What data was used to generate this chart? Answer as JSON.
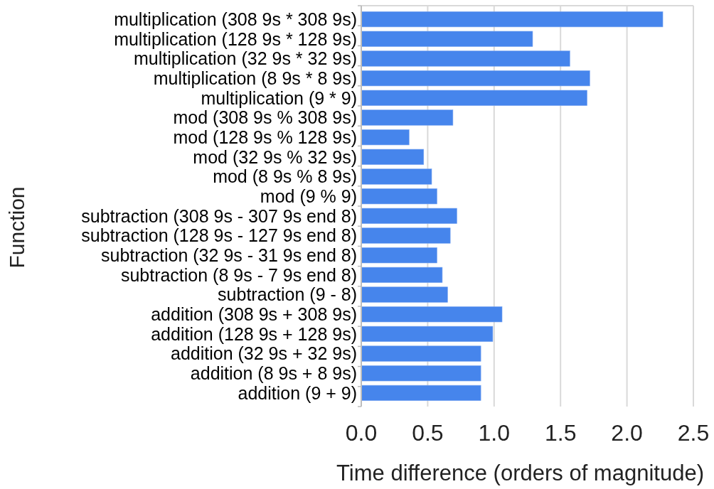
{
  "chart_data": {
    "type": "bar",
    "orientation": "horizontal",
    "xlabel": "Time difference (orders of magnitude)",
    "ylabel": "Function",
    "categories": [
      "multiplication (308 9s * 308 9s)",
      "multiplication (128 9s * 128 9s)",
      "multiplication (32 9s * 32 9s)",
      "multiplication (8 9s * 8 9s)",
      "multiplication (9 * 9)",
      "mod (308 9s % 308 9s)",
      "mod (128 9s % 128 9s)",
      "mod (32 9s % 32 9s)",
      "mod (8 9s % 8 9s)",
      "mod (9 % 9)",
      "subtraction (308 9s - 307 9s end 8)",
      "subtraction (128 9s - 127 9s end 8)",
      "subtraction (32 9s - 31 9s end 8)",
      "subtraction (8 9s - 7 9s end 8)",
      "subtraction (9 - 8)",
      "addition (308 9s + 308 9s)",
      "addition (128 9s + 128 9s)",
      "addition (32 9s + 32 9s)",
      "addition (8 9s + 8 9s)",
      "addition (9 + 9)"
    ],
    "values": [
      2.27,
      1.29,
      1.57,
      1.72,
      1.7,
      0.69,
      0.36,
      0.47,
      0.53,
      0.57,
      0.72,
      0.67,
      0.57,
      0.61,
      0.65,
      1.06,
      0.99,
      0.9,
      0.9,
      0.9
    ],
    "color": "#4685ec",
    "xlim": [
      0,
      2.5
    ],
    "xticks": [
      {
        "value": 0,
        "label": "0.0"
      },
      {
        "value": 0.5,
        "label": "0.5"
      },
      {
        "value": 1,
        "label": "1.0"
      },
      {
        "value": 1.5,
        "label": "1.5"
      },
      {
        "value": 2,
        "label": "2.0"
      },
      {
        "value": 2.5,
        "label": "2.5"
      }
    ],
    "grid": "x"
  }
}
